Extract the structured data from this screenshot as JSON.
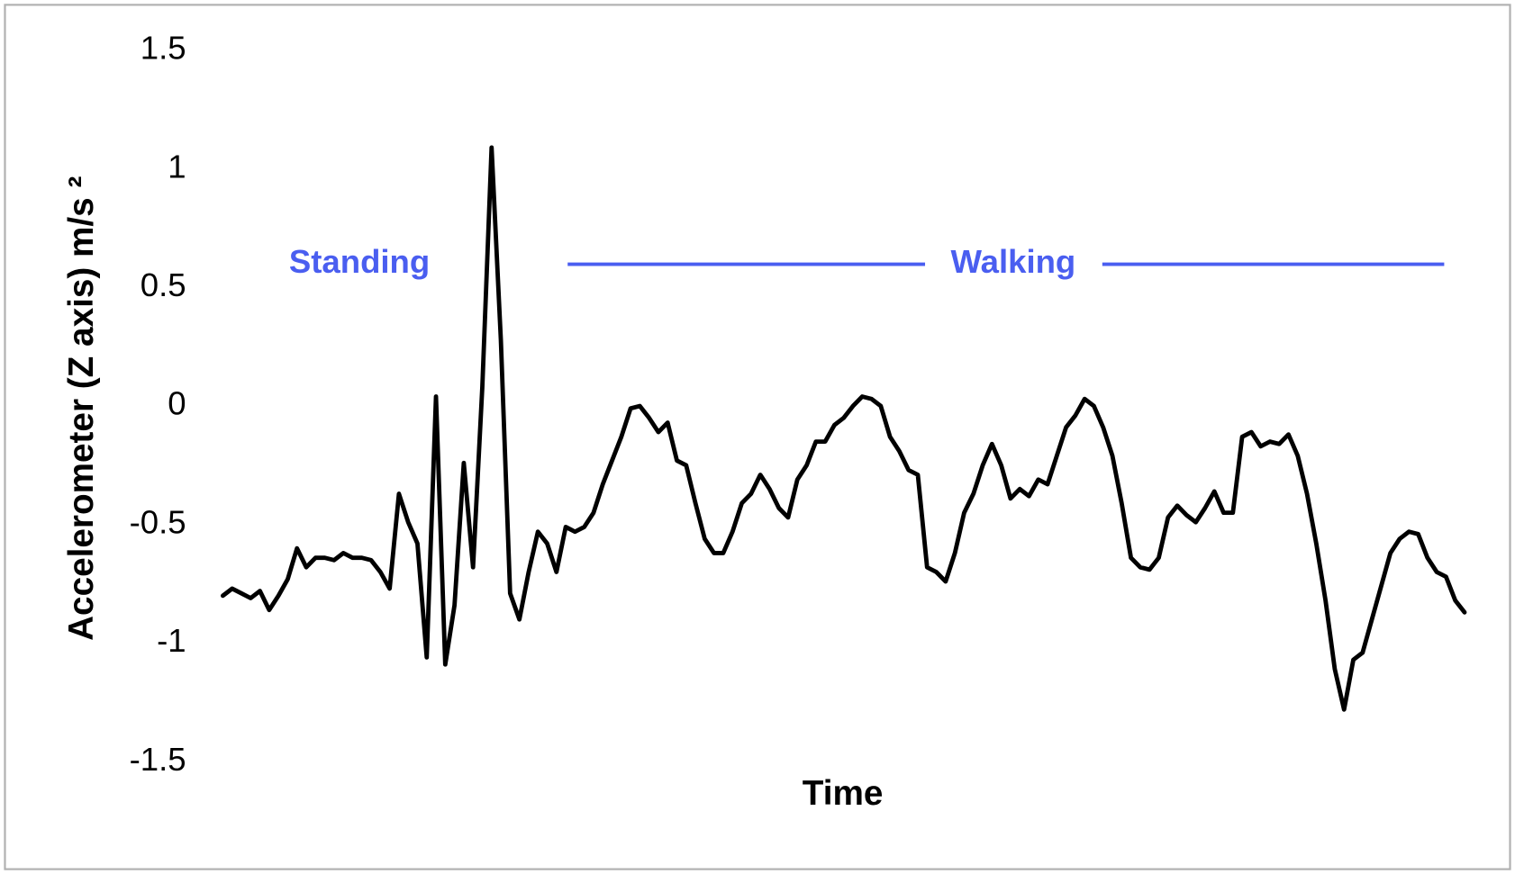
{
  "chart_data": {
    "type": "line",
    "xlabel": "Time",
    "ylabel": "Accelerometer (Z axis) m/s ²",
    "annotations": [
      "Standing",
      "Walking"
    ],
    "color": "#000000",
    "annotation_color": "#4a5ef0",
    "grid": false,
    "ylim": [
      -1.5,
      1.5
    ],
    "yticks": [
      1.5,
      1,
      0.5,
      0,
      -0.5,
      -1,
      -1.5
    ],
    "values": [
      -0.8,
      -0.77,
      -0.79,
      -0.81,
      -0.78,
      -0.86,
      -0.8,
      -0.73,
      -0.6,
      -0.68,
      -0.64,
      -0.64,
      -0.65,
      -0.62,
      -0.64,
      -0.64,
      -0.65,
      -0.7,
      -0.77,
      -0.37,
      -0.49,
      -0.58,
      -1.06,
      0.04,
      -1.09,
      -0.84,
      -0.24,
      -0.68,
      0.08,
      1.09,
      0.28,
      -0.79,
      -0.9,
      -0.7,
      -0.53,
      -0.58,
      -0.7,
      -0.51,
      -0.53,
      -0.51,
      -0.45,
      -0.33,
      -0.23,
      -0.13,
      -0.01,
      0.0,
      -0.05,
      -0.11,
      -0.07,
      -0.23,
      -0.25,
      -0.41,
      -0.56,
      -0.62,
      -0.62,
      -0.53,
      -0.41,
      -0.37,
      -0.29,
      -0.35,
      -0.43,
      -0.47,
      -0.31,
      -0.25,
      -0.15,
      -0.15,
      -0.08,
      -0.05,
      0.0,
      0.04,
      0.03,
      0.0,
      -0.13,
      -0.19,
      -0.27,
      -0.29,
      -0.68,
      -0.7,
      -0.74,
      -0.62,
      -0.45,
      -0.37,
      -0.25,
      -0.16,
      -0.25,
      -0.39,
      -0.35,
      -0.38,
      -0.31,
      -0.33,
      -0.21,
      -0.09,
      -0.04,
      0.03,
      0.0,
      -0.09,
      -0.21,
      -0.41,
      -0.64,
      -0.68,
      -0.69,
      -0.64,
      -0.47,
      -0.42,
      -0.46,
      -0.49,
      -0.43,
      -0.36,
      -0.45,
      -0.45,
      -0.13,
      -0.11,
      -0.17,
      -0.15,
      -0.16,
      -0.12,
      -0.21,
      -0.37,
      -0.58,
      -0.82,
      -1.11,
      -1.28,
      -1.07,
      -1.04,
      -0.9,
      -0.76,
      -0.62,
      -0.56,
      -0.53,
      -0.54,
      -0.64,
      -0.7,
      -0.72,
      -0.82,
      -0.87
    ]
  }
}
